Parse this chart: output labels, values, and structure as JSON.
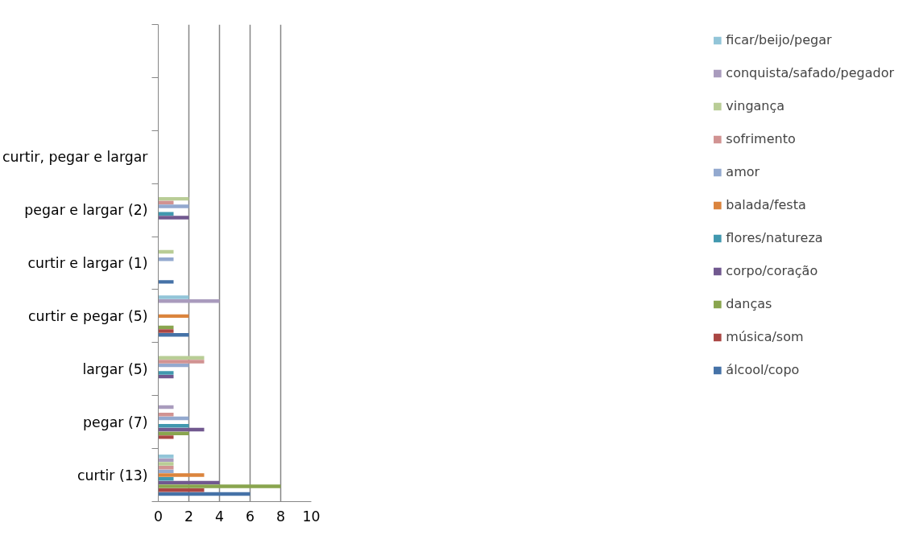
{
  "chart_data": {
    "type": "bar",
    "orientation": "horizontal",
    "categories": [
      null,
      null,
      "curtir, pegar e largar",
      "pegar e largar (2)",
      "curtir e largar (1)",
      "curtir e pegar (5)",
      "largar (5)",
      "pegar (7)",
      "curtir (13)"
    ],
    "series": [
      {
        "name": "álcool/copo",
        "color": "#4572a7",
        "values": [
          null,
          null,
          null,
          null,
          1,
          2,
          null,
          null,
          6
        ]
      },
      {
        "name": "música/som",
        "color": "#aa4643",
        "values": [
          null,
          null,
          null,
          null,
          null,
          1,
          null,
          1,
          3
        ]
      },
      {
        "name": "danças",
        "color": "#89a54e",
        "values": [
          null,
          null,
          null,
          null,
          null,
          1,
          null,
          2,
          8
        ]
      },
      {
        "name": "corpo/coração",
        "color": "#71588f",
        "values": [
          null,
          null,
          null,
          2,
          null,
          null,
          1,
          3,
          4
        ]
      },
      {
        "name": "flores/natureza",
        "color": "#4198af",
        "values": [
          null,
          null,
          null,
          1,
          null,
          null,
          1,
          2,
          1
        ]
      },
      {
        "name": "balada/festa",
        "color": "#db843d",
        "values": [
          null,
          null,
          null,
          null,
          null,
          2,
          null,
          null,
          3
        ]
      },
      {
        "name": "amor",
        "color": "#93a9cf",
        "values": [
          null,
          null,
          null,
          2,
          1,
          null,
          2,
          2,
          1
        ]
      },
      {
        "name": "sofrimento",
        "color": "#d19392",
        "values": [
          null,
          null,
          null,
          1,
          null,
          null,
          3,
          1,
          1
        ]
      },
      {
        "name": "vingança",
        "color": "#b9cd96",
        "values": [
          null,
          null,
          null,
          2,
          1,
          null,
          3,
          null,
          1
        ]
      },
      {
        "name": "conquista/safado/pegador",
        "color": "#a99bbd",
        "values": [
          null,
          null,
          null,
          null,
          null,
          4,
          null,
          1,
          1
        ]
      },
      {
        "name": "ficar/beijo/pegar",
        "color": "#92c5d8",
        "values": [
          null,
          null,
          null,
          null,
          null,
          2,
          null,
          null,
          1
        ]
      }
    ],
    "xlim": [
      0,
      10
    ],
    "xticks": [
      0,
      2,
      4,
      6,
      8,
      10
    ],
    "grid": "x",
    "legend": "right"
  }
}
